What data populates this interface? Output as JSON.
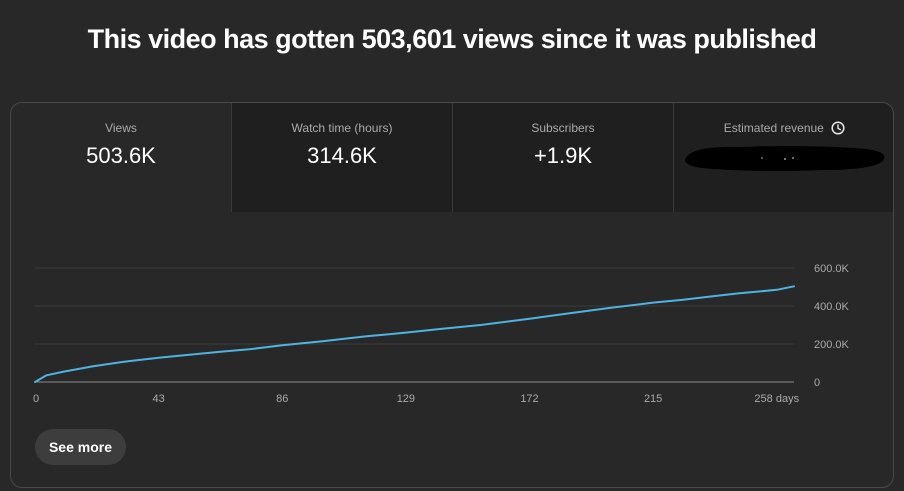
{
  "headline": "This video has gotten 503,601 views since it was published",
  "tabs": [
    {
      "title": "Views",
      "value": "503.6K",
      "active": true
    },
    {
      "title": "Watch time (hours)",
      "value": "314.6K",
      "active": false
    },
    {
      "title": "Subscribers",
      "value": "+1.9K",
      "active": false
    },
    {
      "title": "Estimated revenue",
      "value": "",
      "active": false,
      "icon": "clock-icon",
      "value_redacted": true
    }
  ],
  "see_more_label": "See more",
  "colors": {
    "line": "#4fb3e0",
    "background": "#282828",
    "tab_inactive": "#1f1f1f"
  },
  "chart_data": {
    "type": "line",
    "title": "",
    "xlabel": "",
    "ylabel": "",
    "xlim": [
      0,
      264
    ],
    "ylim": [
      0,
      600000
    ],
    "x_ticks": [
      0,
      43,
      86,
      129,
      172,
      215,
      258
    ],
    "x_tick_labels": [
      "0",
      "43",
      "86",
      "129",
      "172",
      "215",
      "258 days"
    ],
    "y_ticks": [
      0,
      200000,
      400000,
      600000
    ],
    "y_tick_labels": [
      "0",
      "200.0K",
      "400.0K",
      "600.0K"
    ],
    "grid": true,
    "series": [
      {
        "x": [
          0,
          4,
          10,
          20,
          30,
          43,
          55,
          65,
          75,
          86,
          100,
          115,
          129,
          140,
          155,
          172,
          185,
          200,
          215,
          225,
          235,
          245,
          258,
          264
        ],
        "y": [
          0,
          35000,
          55000,
          82000,
          105000,
          128000,
          145000,
          160000,
          173000,
          193000,
          215000,
          240000,
          260000,
          278000,
          300000,
          333000,
          360000,
          390000,
          418000,
          432000,
          450000,
          467000,
          485000,
          503601
        ]
      }
    ]
  }
}
